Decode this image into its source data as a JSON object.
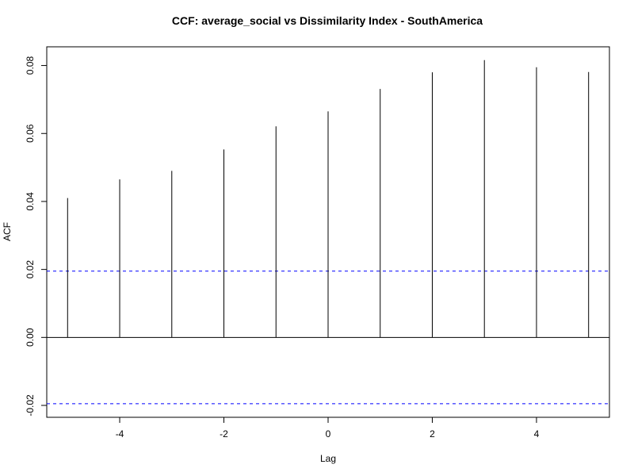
{
  "chart_data": {
    "type": "bar",
    "title": "CCF: average_social vs Dissimilarity Index - SouthAmerica",
    "xlabel": "Lag",
    "ylabel": "ACF",
    "x": [
      -5,
      -4,
      -3,
      -2,
      -1,
      0,
      1,
      2,
      3,
      4,
      5
    ],
    "values": [
      0.041,
      0.0465,
      0.049,
      0.0553,
      0.0621,
      0.0665,
      0.0731,
      0.078,
      0.0816,
      0.0795,
      0.0781
    ],
    "xlim": [
      -5.4,
      5.4
    ],
    "ylim": [
      -0.0235,
      0.0855
    ],
    "x_ticks": [
      -4,
      -2,
      0,
      2,
      4
    ],
    "x_tick_labels": [
      "-4",
      "-2",
      "0",
      "2",
      "4"
    ],
    "y_ticks": [
      -0.02,
      0.0,
      0.02,
      0.04,
      0.06,
      0.08
    ],
    "y_tick_labels": [
      "-0.02",
      "0.00",
      "0.02",
      "0.04",
      "0.06",
      "0.08"
    ],
    "confidence_bounds": [
      0.0195,
      -0.0195
    ],
    "confidence_color": "#0000ff",
    "grid": false,
    "legend": "none"
  }
}
